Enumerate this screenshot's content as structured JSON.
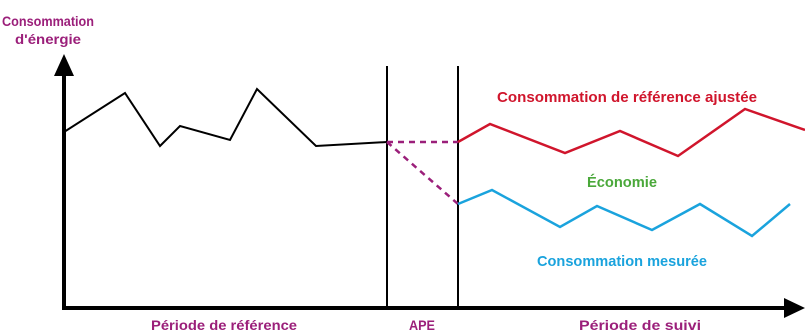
{
  "y_axis_label_line1": "Consommation",
  "y_axis_label_line2": "d'énergie",
  "x_labels": {
    "reference_period": "Période de référence",
    "ape": "APE",
    "follow_up_period": "Période de suivi"
  },
  "series_labels": {
    "adjusted_reference": "Consommation de référence ajustée",
    "savings": "Économie",
    "measured": "Consommation mesurée"
  },
  "colors": {
    "axis": "#000000",
    "reference": "#000000",
    "adjusted_reference": "#d0152c",
    "measured": "#1aa3dd",
    "savings": "#4aa83a",
    "ape_transition": "#9b1f7a",
    "x_labels": "#9b1f7a",
    "y_label": "#9b1f7a"
  }
}
